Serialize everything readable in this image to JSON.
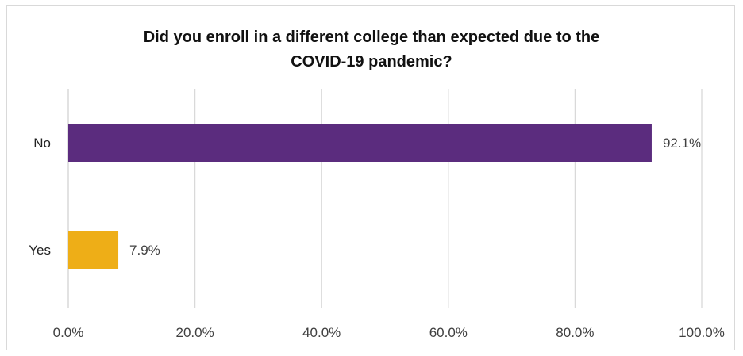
{
  "chart_data": {
    "type": "bar",
    "orientation": "horizontal",
    "title": "Did you enroll in a different college than expected due to the COVID-19 pandemic?",
    "title_lines": [
      "Did you enroll in a different college than expected due to the",
      "COVID-19 pandemic?"
    ],
    "categories": [
      "No",
      "Yes"
    ],
    "values": [
      92.1,
      7.9
    ],
    "data_labels": [
      "92.1%",
      "7.9%"
    ],
    "bar_colors": [
      "#5b2c7e",
      "#eeae17"
    ],
    "xlim": [
      0,
      100
    ],
    "x_ticks": [
      0,
      20,
      40,
      60,
      80,
      100
    ],
    "x_tick_labels": [
      "0.0%",
      "20.0%",
      "40.0%",
      "60.0%",
      "80.0%",
      "100.0%"
    ],
    "grid": true,
    "legend": "none",
    "gridline_color": "#d9d9d9",
    "text_color": "#404040"
  }
}
